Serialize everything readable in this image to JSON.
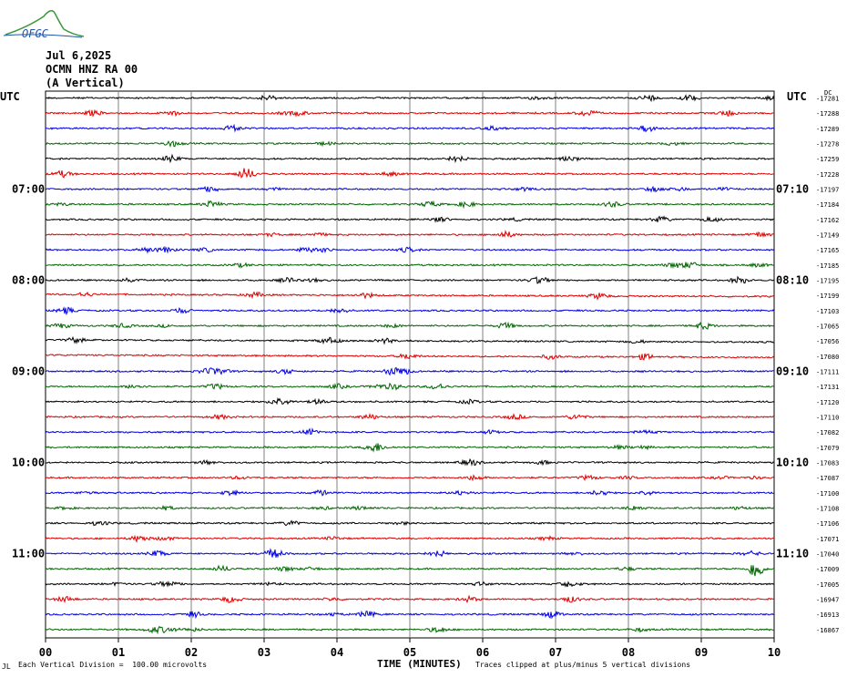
{
  "header": {
    "logo_text": "OFGC",
    "date": "Jul 6,2025",
    "station": "OCMN HNZ RA 00",
    "component": "(A Vertical)"
  },
  "axis_labels": {
    "left_top": "UTC",
    "right_top": "UTC",
    "right_unit": "DC"
  },
  "footer": {
    "scale_note": "Each Vertical Division =  100.00 microvolts",
    "clip_note": "Traces clipped at plus/minus 5 vertical divisions",
    "corner_mark": "JL"
  },
  "colors": {
    "trace_cycle": [
      "#000000",
      "#dd0000",
      "#0000dd",
      "#006600"
    ],
    "grid": "#808080"
  },
  "chart_data": {
    "type": "line",
    "title": "",
    "xlabel": "TIME (MINUTES)",
    "ylabel": "",
    "xlim": [
      0,
      10
    ],
    "x_ticks": [
      "00",
      "01",
      "02",
      "03",
      "04",
      "05",
      "06",
      "07",
      "08",
      "09",
      "10"
    ],
    "left_time_labels": [
      {
        "row": 6,
        "label": "07:00"
      },
      {
        "row": 12,
        "label": "08:00"
      },
      {
        "row": 18,
        "label": "09:00"
      },
      {
        "row": 24,
        "label": "10:00"
      },
      {
        "row": 30,
        "label": "11:00"
      }
    ],
    "right_time_labels": [
      {
        "row": 6,
        "label": "07:10"
      },
      {
        "row": 12,
        "label": "08:10"
      },
      {
        "row": 18,
        "label": "09:10"
      },
      {
        "row": 24,
        "label": "10:10"
      },
      {
        "row": 30,
        "label": "11:10"
      }
    ],
    "dc_offsets": [
      -17281,
      -17288,
      -17289,
      -17278,
      -17259,
      -17228,
      -17197,
      -17184,
      -17162,
      -17149,
      -17165,
      -17185,
      -17195,
      -17199,
      -17103,
      -17065,
      -17056,
      -17080,
      -17111,
      -17131,
      -17120,
      -17110,
      -17082,
      -17079,
      -17083,
      -17087,
      -17100,
      -17108,
      -17106,
      -17071,
      -17040,
      -17009,
      -17005,
      -16947,
      -16913,
      -16867
    ],
    "events": [
      {
        "row": 31,
        "minute": 9.75,
        "amplitude": "large"
      }
    ]
  }
}
